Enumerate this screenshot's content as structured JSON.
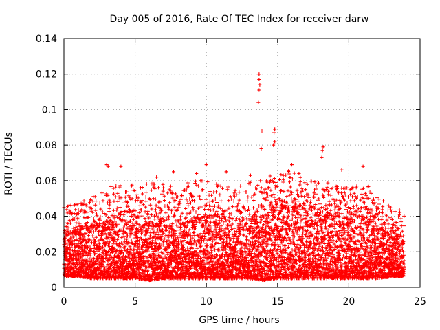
{
  "chart_data": {
    "type": "scatter",
    "title": "Day 005 of 2016, Rate Of TEC Index for receiver darw",
    "xlabel": "GPS time / hours",
    "ylabel": "ROTI / TECUs",
    "xlim": [
      0,
      25
    ],
    "ylim": [
      0,
      0.14
    ],
    "xticks": [
      0,
      5,
      10,
      15,
      20,
      25
    ],
    "xtick_labels": [
      "0",
      "5",
      "10",
      "15",
      "20",
      "25"
    ],
    "yticks": [
      0,
      0.02,
      0.04,
      0.06,
      0.08,
      0.1,
      0.12,
      0.14
    ],
    "ytick_labels": [
      "0",
      "0.02",
      "0.04",
      "0.06",
      "0.08",
      "0.1",
      "0.12",
      "0.14"
    ],
    "grid": true,
    "marker": "+",
    "color": "#ff0000",
    "x_range_of_data": [
      0,
      23.9
    ],
    "notable_points": [
      {
        "x": 13.7,
        "y": 0.12
      },
      {
        "x": 13.7,
        "y": 0.117
      },
      {
        "x": 13.75,
        "y": 0.114
      },
      {
        "x": 13.7,
        "y": 0.111
      },
      {
        "x": 13.65,
        "y": 0.104
      },
      {
        "x": 13.9,
        "y": 0.088
      },
      {
        "x": 14.8,
        "y": 0.089
      },
      {
        "x": 14.75,
        "y": 0.087
      },
      {
        "x": 14.8,
        "y": 0.082
      },
      {
        "x": 14.7,
        "y": 0.08
      },
      {
        "x": 13.85,
        "y": 0.078
      },
      {
        "x": 18.2,
        "y": 0.079
      },
      {
        "x": 18.15,
        "y": 0.077
      },
      {
        "x": 18.1,
        "y": 0.073
      },
      {
        "x": 3.0,
        "y": 0.069
      },
      {
        "x": 3.1,
        "y": 0.068
      },
      {
        "x": 4.0,
        "y": 0.068
      },
      {
        "x": 10.0,
        "y": 0.069
      },
      {
        "x": 16.0,
        "y": 0.069
      },
      {
        "x": 21.0,
        "y": 0.068
      },
      {
        "x": 7.7,
        "y": 0.065
      },
      {
        "x": 11.4,
        "y": 0.065
      },
      {
        "x": 19.5,
        "y": 0.066
      },
      {
        "x": 9.3,
        "y": 0.064
      },
      {
        "x": 16.5,
        "y": 0.064
      },
      {
        "x": 13.1,
        "y": 0.063
      },
      {
        "x": 15.4,
        "y": 0.063
      },
      {
        "x": 6.5,
        "y": 0.062
      }
    ],
    "envelope": {
      "x": [
        0,
        1,
        2,
        3,
        4,
        5,
        6,
        7,
        8,
        9,
        10,
        11,
        12,
        13,
        14,
        15,
        16,
        17,
        18,
        19,
        20,
        21,
        22,
        23,
        23.9
      ],
      "upper": [
        0.046,
        0.047,
        0.053,
        0.057,
        0.06,
        0.058,
        0.059,
        0.059,
        0.056,
        0.06,
        0.062,
        0.058,
        0.057,
        0.059,
        0.062,
        0.064,
        0.066,
        0.06,
        0.06,
        0.058,
        0.057,
        0.061,
        0.052,
        0.045,
        0.044
      ],
      "dense_top": [
        0.03,
        0.032,
        0.034,
        0.036,
        0.036,
        0.034,
        0.036,
        0.035,
        0.034,
        0.037,
        0.04,
        0.036,
        0.034,
        0.036,
        0.04,
        0.044,
        0.045,
        0.042,
        0.04,
        0.04,
        0.038,
        0.038,
        0.035,
        0.028,
        0.026
      ],
      "lower": [
        0.006,
        0.006,
        0.005,
        0.005,
        0.005,
        0.005,
        0.004,
        0.005,
        0.005,
        0.005,
        0.005,
        0.005,
        0.005,
        0.005,
        0.004,
        0.005,
        0.005,
        0.005,
        0.005,
        0.005,
        0.005,
        0.005,
        0.005,
        0.006,
        0.006
      ]
    }
  }
}
